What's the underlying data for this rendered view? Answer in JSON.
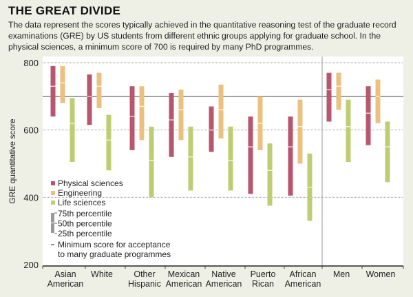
{
  "title": "THE GREAT DIVIDE",
  "subtitle": "The data represent the scores typically achieved in the quantitative reasoning test of the graduate record examinations (GRE) by US students from different ethnic groups applying for graduate school. In the physical sciences, a minimum score of 700 is required by many PhD programmes.",
  "chart_data": {
    "type": "range-bar",
    "ylabel": "GRE quantitative score",
    "ylim": [
      200,
      800
    ],
    "yticks": [
      200,
      400,
      600,
      800
    ],
    "grid": true,
    "reference_line": 700,
    "categories": [
      "Asian American",
      "White",
      "Other Hispanic",
      "Mexican American",
      "Native American",
      "Puerto Rican",
      "African American",
      "Men",
      "Women"
    ],
    "category_labels": [
      [
        "Asian",
        "American"
      ],
      [
        "White"
      ],
      [
        "Other",
        "Hispanic"
      ],
      [
        "Mexican",
        "American"
      ],
      [
        "Native",
        "American"
      ],
      [
        "Puerto",
        "Rican"
      ],
      [
        "African",
        "American"
      ],
      [
        "Men"
      ],
      [
        "Women"
      ]
    ],
    "series": [
      {
        "name": "Physical sciences",
        "color": "#b9566f",
        "p25": [
          640,
          615,
          540,
          520,
          535,
          410,
          405,
          625,
          555
        ],
        "p50": [
          730,
          700,
          640,
          630,
          600,
          550,
          550,
          720,
          650
        ],
        "p75": [
          790,
          765,
          730,
          710,
          670,
          640,
          640,
          770,
          730
        ]
      },
      {
        "name": "Engineering",
        "color": "#ecc180",
        "p25": [
          680,
          665,
          570,
          570,
          575,
          540,
          500,
          660,
          620
        ],
        "p50": [
          740,
          730,
          670,
          660,
          660,
          620,
          610,
          730,
          700
        ],
        "p75": [
          790,
          770,
          730,
          720,
          735,
          700,
          690,
          770,
          750
        ]
      },
      {
        "name": "Life sciences",
        "color": "#bfcd72",
        "p25": [
          505,
          480,
          400,
          420,
          420,
          375,
          330,
          505,
          445
        ],
        "p50": [
          620,
          570,
          510,
          520,
          510,
          480,
          430,
          610,
          550
        ],
        "p75": [
          695,
          645,
          610,
          610,
          610,
          560,
          530,
          690,
          625
        ]
      }
    ],
    "legend": {
      "placement": "bottom-left",
      "percentiles": [
        "75th percentile",
        "50th percentile",
        "25th percentile"
      ],
      "reference_label": [
        "Minimum score for acceptance",
        "to many graduate programmes"
      ]
    }
  }
}
